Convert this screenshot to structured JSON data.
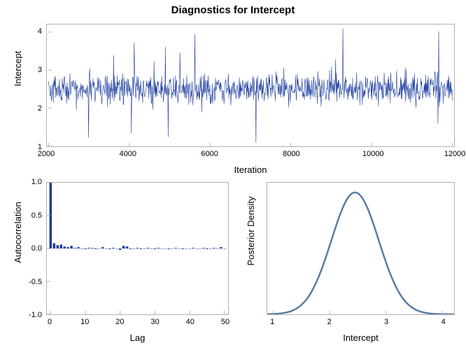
{
  "title": {
    "text": "Diagnostics for Intercept",
    "fontsize": 15,
    "fontweight": "bold",
    "color": "#000000"
  },
  "background_color": "#ffffff",
  "border_color": "#b0b0b0",
  "tick_fontsize": 11,
  "label_fontsize": 13,
  "trace": {
    "type": "line",
    "xlabel": "Iteration",
    "ylabel": "Intercept",
    "xlim": [
      2000,
      12000
    ],
    "ylim": [
      1,
      4.2
    ],
    "xticks": [
      2000,
      4000,
      6000,
      8000,
      10000,
      12000
    ],
    "yticks": [
      1,
      2,
      3,
      4
    ],
    "line_color": "#1a3a9e",
    "line_width": 0.6,
    "n_points": 1000,
    "mean": 2.5,
    "sd_inner": 0.35,
    "spike_max": 4.1,
    "spike_min": 1.1
  },
  "acf": {
    "type": "bar",
    "xlabel": "Lag",
    "ylabel": "Autocorrelation",
    "xlim": [
      -1,
      51
    ],
    "ylim": [
      -1.0,
      1.0
    ],
    "xticks": [
      0,
      10,
      20,
      30,
      40,
      50
    ],
    "yticks": [
      -1.0,
      -0.5,
      0.0,
      0.5,
      1.0
    ],
    "bar_color": "#1a3a9e",
    "bar_width": 0.7,
    "lags": [
      0,
      1,
      2,
      3,
      4,
      5,
      6,
      7,
      8,
      9,
      10,
      11,
      12,
      13,
      14,
      15,
      16,
      17,
      18,
      19,
      20,
      21,
      22,
      23,
      24,
      25,
      26,
      27,
      28,
      29,
      30,
      31,
      32,
      33,
      34,
      35,
      36,
      37,
      38,
      39,
      40,
      41,
      42,
      43,
      44,
      45,
      46,
      47,
      48,
      49,
      50
    ],
    "values": [
      1.0,
      0.08,
      0.05,
      0.06,
      0.03,
      0.02,
      0.04,
      0.01,
      0.02,
      0.0,
      -0.01,
      0.01,
      0.01,
      -0.01,
      0.0,
      0.02,
      0.0,
      -0.01,
      0.01,
      0.0,
      -0.02,
      0.04,
      0.03,
      -0.01,
      0.0,
      0.01,
      -0.01,
      0.0,
      0.01,
      0.0,
      -0.01,
      0.01,
      0.0,
      0.0,
      -0.01,
      0.0,
      0.01,
      0.0,
      -0.01,
      0.0,
      0.0,
      0.01,
      0.0,
      0.0,
      0.01,
      -0.01,
      0.0,
      0.01,
      0.0,
      0.02,
      0.0
    ]
  },
  "density": {
    "type": "line",
    "xlabel": "Intercept",
    "ylabel": "Posterior Density",
    "xlim": [
      0.9,
      4.2
    ],
    "ylim": [
      0,
      1.08
    ],
    "xticks": [
      1,
      2,
      3,
      4
    ],
    "yticks_labels_visible": false,
    "line_color": "#5a7aa8",
    "line_width": 2.5,
    "mu": 2.45,
    "sigma": 0.42,
    "peak": 1.0
  }
}
